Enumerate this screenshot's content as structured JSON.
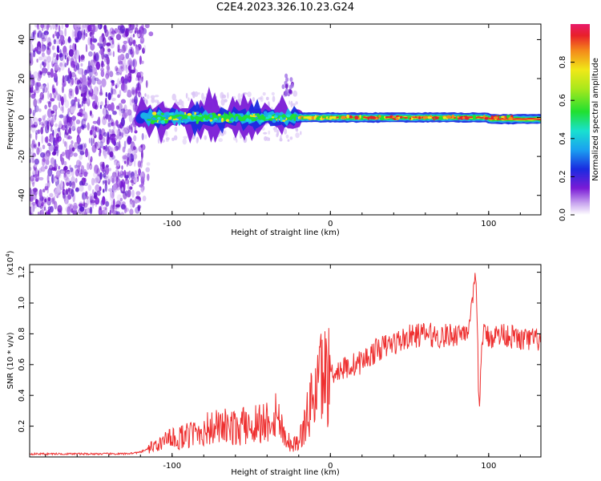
{
  "title": "C2E4.2023.326.10.23.G24",
  "chart_data": [
    {
      "type": "heatmap",
      "xlabel": "Height of straight line (km)",
      "ylabel": "Frequency (Hz)",
      "xlim": [
        -190,
        133
      ],
      "ylim": [
        -50,
        48
      ],
      "xticks": [
        -100,
        0,
        100
      ],
      "yticks": [
        -40,
        -20,
        0,
        20,
        40
      ],
      "colorbar": {
        "label": "Normalized spectral amplitude",
        "range": [
          0.0,
          1.0
        ],
        "ticks": [
          "0.0",
          "0.2",
          "0.4",
          "0.6",
          "0.8"
        ]
      },
      "description_regions": {
        "noise_x_range": [
          -190,
          -113
        ],
        "ridge_frequency_hz": 0
      },
      "colors": {
        "noise": "#7a1bd6",
        "ridge_high": "#e8202a"
      }
    },
    {
      "type": "line",
      "xlabel": "Height of straight line (km)",
      "ylabel": "SNR (10 * v/v)",
      "y_multiplier": "(x10",
      "y_multiplier_exp": "4",
      "y_multiplier_close": ")",
      "xlim": [
        -190,
        133
      ],
      "ylim": [
        0,
        1.25
      ],
      "xticks": [
        -100,
        0,
        100
      ],
      "yticks": [
        "0.2",
        "0.4",
        "0.6",
        "0.8",
        "1.0",
        "1.2"
      ],
      "ytick_values": [
        0.2,
        0.4,
        0.6,
        0.8,
        1.0,
        1.2
      ],
      "color": "#ee3030",
      "x": [
        -190,
        -160,
        -130,
        -120,
        -110,
        -100,
        -90,
        -80,
        -70,
        -60,
        -50,
        -40,
        -35,
        -30,
        -25,
        -20,
        -15,
        -10,
        -5,
        0,
        10,
        20,
        30,
        40,
        50,
        60,
        70,
        80,
        88,
        92,
        94,
        96,
        100,
        110,
        120,
        133
      ],
      "y": [
        0.02,
        0.02,
        0.02,
        0.03,
        0.08,
        0.12,
        0.14,
        0.18,
        0.2,
        0.19,
        0.22,
        0.24,
        0.3,
        0.18,
        0.08,
        0.1,
        0.25,
        0.45,
        0.55,
        0.55,
        0.58,
        0.62,
        0.7,
        0.74,
        0.78,
        0.8,
        0.78,
        0.8,
        0.84,
        1.18,
        0.28,
        0.8,
        0.78,
        0.8,
        0.76,
        0.76
      ]
    }
  ]
}
